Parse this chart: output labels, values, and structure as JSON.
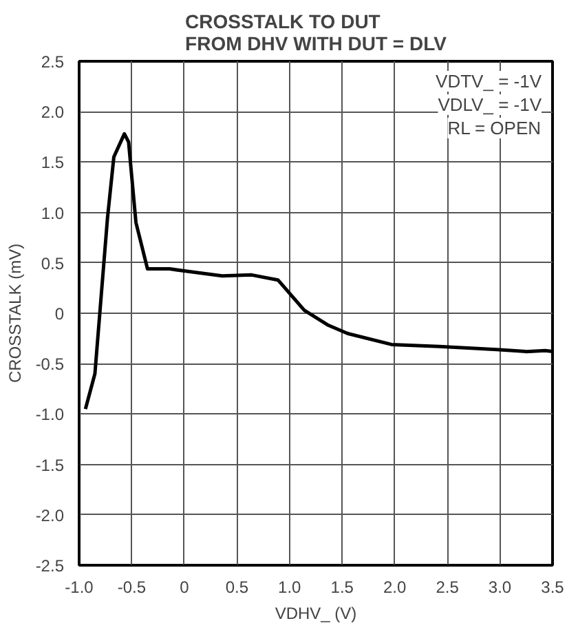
{
  "chart_data": {
    "type": "line",
    "title": "CROSSTALK TO DUT\nFROM DHV WITH DUT = DLV",
    "xlabel": "VDHV_ (V)",
    "ylabel": "CROSSTALK (mV)",
    "annotations": [
      "VDTV_ = -1V",
      "VDLV_ = -1V",
      "RL = OPEN"
    ],
    "x": [
      -0.94,
      -0.85,
      -0.73,
      -0.67,
      -0.57,
      -0.53,
      -0.46,
      -0.35,
      -0.14,
      0.0,
      0.36,
      0.64,
      0.89,
      1.14,
      1.37,
      1.55,
      1.97,
      2.42,
      2.97,
      3.25,
      3.43,
      3.5
    ],
    "series": [
      {
        "color": "#000000",
        "values": [
          -0.95,
          -0.6,
          0.95,
          1.55,
          1.78,
          1.7,
          0.9,
          0.44,
          0.44,
          0.42,
          0.37,
          0.38,
          0.33,
          0.03,
          -0.12,
          -0.2,
          -0.31,
          -0.33,
          -0.36,
          -0.38,
          -0.37,
          -0.38
        ]
      }
    ],
    "xlim": [
      -1.0,
      3.5
    ],
    "ylim": [
      -2.5,
      2.5
    ],
    "xticks": [
      {
        "value": -1,
        "label": "-1.0"
      },
      -0.5,
      0,
      0.5,
      {
        "value": 1,
        "label": "1.0"
      },
      1.5,
      {
        "value": 2,
        "label": "2.0"
      },
      2.5,
      {
        "value": 3,
        "label": "3.0"
      },
      3.5
    ],
    "yticks": [
      {
        "value": -2.5,
        "label": "-2.5"
      },
      {
        "value": -2,
        "label": "-2.0"
      },
      -1.5,
      {
        "value": -1,
        "label": "-1.0"
      },
      -0.5,
      0,
      0.5,
      {
        "value": 1,
        "label": "1.0"
      },
      1.5,
      {
        "value": 2,
        "label": "2.0"
      },
      2.5
    ],
    "grid": true,
    "line_style": "solid",
    "marker": "none"
  }
}
